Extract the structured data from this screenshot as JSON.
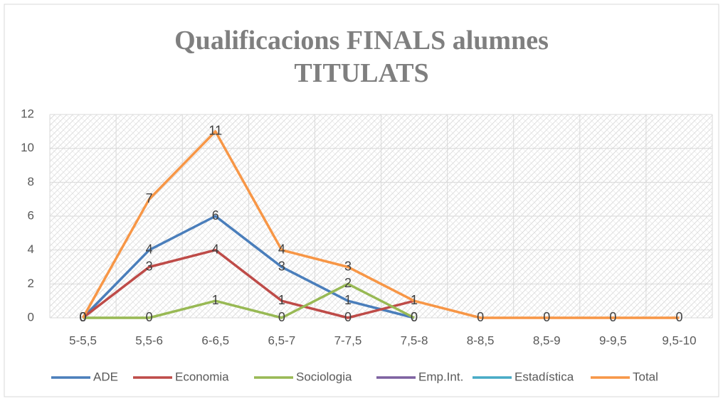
{
  "chart_data": {
    "type": "line",
    "title": "Qualificacions FINALS alumnes TITULATS",
    "categories": [
      "5-5,5",
      "5,5-6",
      "6-6,5",
      "6,5-7",
      "7-7,5",
      "7,5-8",
      "8-8,5",
      "8,5-9",
      "9-9,5",
      "9,5-10"
    ],
    "series": [
      {
        "name": "ADE",
        "color": "#4a7ebb",
        "values": [
          0,
          4,
          6,
          3,
          1,
          0,
          null,
          null,
          null,
          null
        ]
      },
      {
        "name": "Economia",
        "color": "#be4b48",
        "values": [
          0,
          3,
          4,
          1,
          0,
          1,
          null,
          null,
          null,
          null
        ]
      },
      {
        "name": "Sociologia",
        "color": "#98b954",
        "values": [
          0,
          0,
          1,
          0,
          2,
          0,
          null,
          null,
          null,
          null
        ]
      },
      {
        "name": "Emp.Int.",
        "color": "#7d60a0",
        "values": [
          0,
          null,
          null,
          null,
          null,
          null,
          null,
          null,
          null,
          null
        ]
      },
      {
        "name": "Estadística",
        "color": "#46aac5",
        "values": [
          0,
          null,
          null,
          null,
          null,
          null,
          null,
          null,
          null,
          null
        ]
      },
      {
        "name": "Total",
        "color": "#f79646",
        "values": [
          0,
          7,
          11,
          4,
          3,
          1,
          0,
          0,
          0,
          0
        ]
      }
    ],
    "ylim": [
      0,
      12
    ],
    "yticks": [
      0,
      2,
      4,
      6,
      8,
      10,
      12
    ],
    "grid": true,
    "legend": "bottom"
  }
}
